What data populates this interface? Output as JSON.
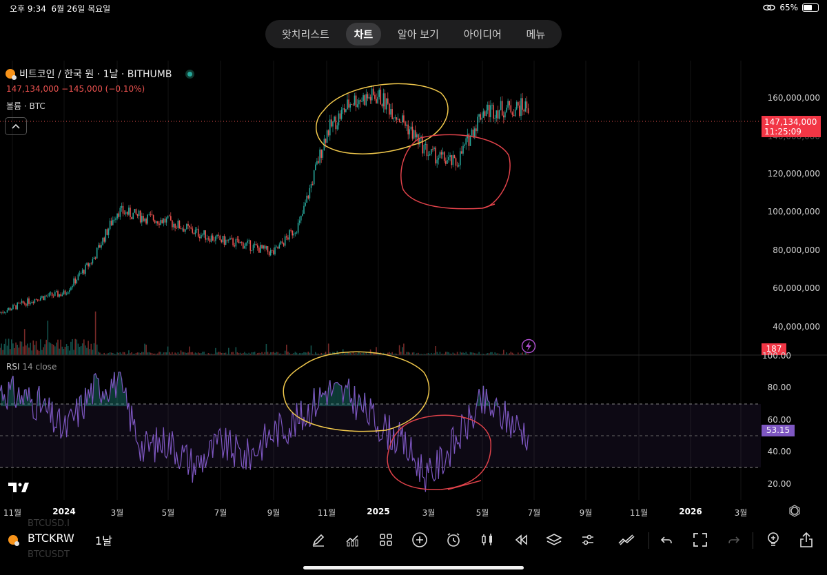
{
  "status_bar": {
    "time": "오후 9:34",
    "date": "6월 26일 목요일",
    "battery": "65%",
    "battery_level": 0.65
  },
  "nav": {
    "tabs": [
      "왓치리스트",
      "차트",
      "알아 보기",
      "아이디어",
      "메뉴"
    ],
    "active": "차트"
  },
  "legend": {
    "title": "비트코인 / 한국 원 · 1날 · BITHUMB",
    "price_line": "147,134,000  −145,000 (−0.10%)",
    "volume_label": "볼륨 · BTC"
  },
  "price_axis": [
    "160,000,000",
    "140,000,000",
    "120,000,000",
    "100,000,000",
    "80,000,000",
    "60,000,000",
    "40,000,000"
  ],
  "price_badge": {
    "price": "147,134,000",
    "countdown": "11:25:09"
  },
  "volume_badge": "187",
  "rsi": {
    "label": "RSI",
    "params": "14 close",
    "value": "53.15",
    "axis": [
      "100.00",
      "80.00",
      "60.00",
      "40.00",
      "20.00"
    ]
  },
  "time_axis": [
    "11월",
    "2024",
    "3월",
    "5월",
    "7월",
    "9월",
    "11월",
    "2025",
    "3월",
    "5월",
    "7월",
    "9월",
    "11월",
    "2026",
    "3월"
  ],
  "toolbar": {
    "symbol": "BTCKRW",
    "interval": "1날",
    "ghost_top": "BTCUSD.I",
    "ghost_bottom": "BTCUSDT"
  },
  "colors": {
    "up": "#26a69a",
    "down": "#ef5350",
    "rsi": "#7e57c2",
    "annotation_yellow": "#f2c94c",
    "annotation_red": "#e0424a"
  },
  "chart_data": [
    {
      "type": "candlestick",
      "title": "비트코인 / 한국 원 · 1날 · BITHUMB",
      "ylim": [
        30000000,
        168000000
      ],
      "x": [
        "2023-11",
        "2023-12",
        "2024-01",
        "2024-02",
        "2024-03",
        "2024-04",
        "2024-05",
        "2024-06",
        "2024-07",
        "2024-08",
        "2024-09",
        "2024-10",
        "2024-11",
        "2024-12",
        "2025-01",
        "2025-02",
        "2025-03",
        "2025-04",
        "2025-05",
        "2025-06"
      ],
      "close": [
        50000000,
        57000000,
        59000000,
        75000000,
        98000000,
        95000000,
        93000000,
        88000000,
        84000000,
        82000000,
        78000000,
        92000000,
        135000000,
        150000000,
        152000000,
        140000000,
        125000000,
        120000000,
        145000000,
        147134000
      ],
      "last_price": 147134000
    },
    {
      "type": "line",
      "title": "RSI 14 close",
      "ylim": [
        15,
        100
      ],
      "bands": [
        30,
        50,
        70
      ],
      "x": [
        "2023-11",
        "2023-12",
        "2024-01",
        "2024-02",
        "2024-03",
        "2024-04",
        "2024-05",
        "2024-06",
        "2024-07",
        "2024-08",
        "2024-09",
        "2024-10",
        "2024-11",
        "2024-12",
        "2025-01",
        "2025-02",
        "2025-03",
        "2025-04",
        "2025-05",
        "2025-06"
      ],
      "values": [
        80,
        72,
        55,
        80,
        85,
        45,
        50,
        35,
        48,
        40,
        55,
        62,
        80,
        75,
        60,
        48,
        28,
        50,
        72,
        53.15
      ],
      "last": 53.15
    }
  ]
}
